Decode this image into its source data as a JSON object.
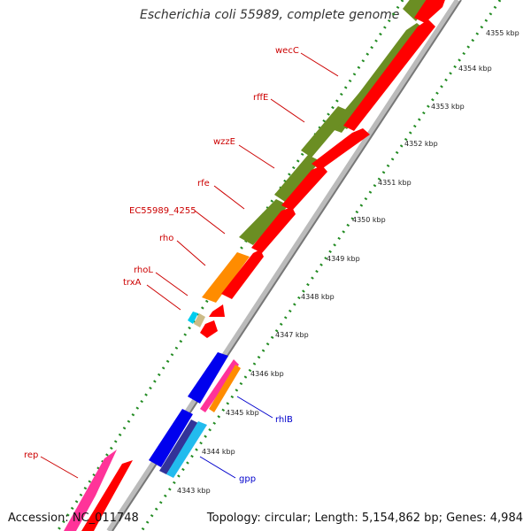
{
  "title": "Escherichia coli 55989, complete genome",
  "accession": "Accession: NC_011748",
  "topology": "Topology: circular; Length: 5,154,862 bp; Genes: 4,984",
  "colors": {
    "label_red": "#cc0000",
    "label_blue": "#0000cc",
    "tick_green": "#228b22",
    "gene_green": "#6b8e23",
    "gene_red": "#ff0000",
    "gene_orange": "#ff8c00",
    "gene_blue": "#0000ee",
    "gene_pink": "#ff3399",
    "gene_cyan": "#22bbee",
    "backbone": "#999999"
  },
  "kbp_labels": [
    "4343 kbp",
    "4344 kbp",
    "4345 kbp",
    "4346 kbp",
    "4347 kbp",
    "4348 kbp",
    "4349 kbp",
    "4350 kbp",
    "4351 kbp",
    "4352 kbp",
    "4353 kbp",
    "4354 kbp",
    "4355 kbp"
  ],
  "gene_labels_left": [
    "wecC",
    "rffE",
    "wzzE",
    "rfe",
    "EC55989_4255",
    "rho",
    "rhoL",
    "trxA",
    "rep"
  ],
  "gene_labels_right": [
    "rhlB",
    "gpp"
  ]
}
